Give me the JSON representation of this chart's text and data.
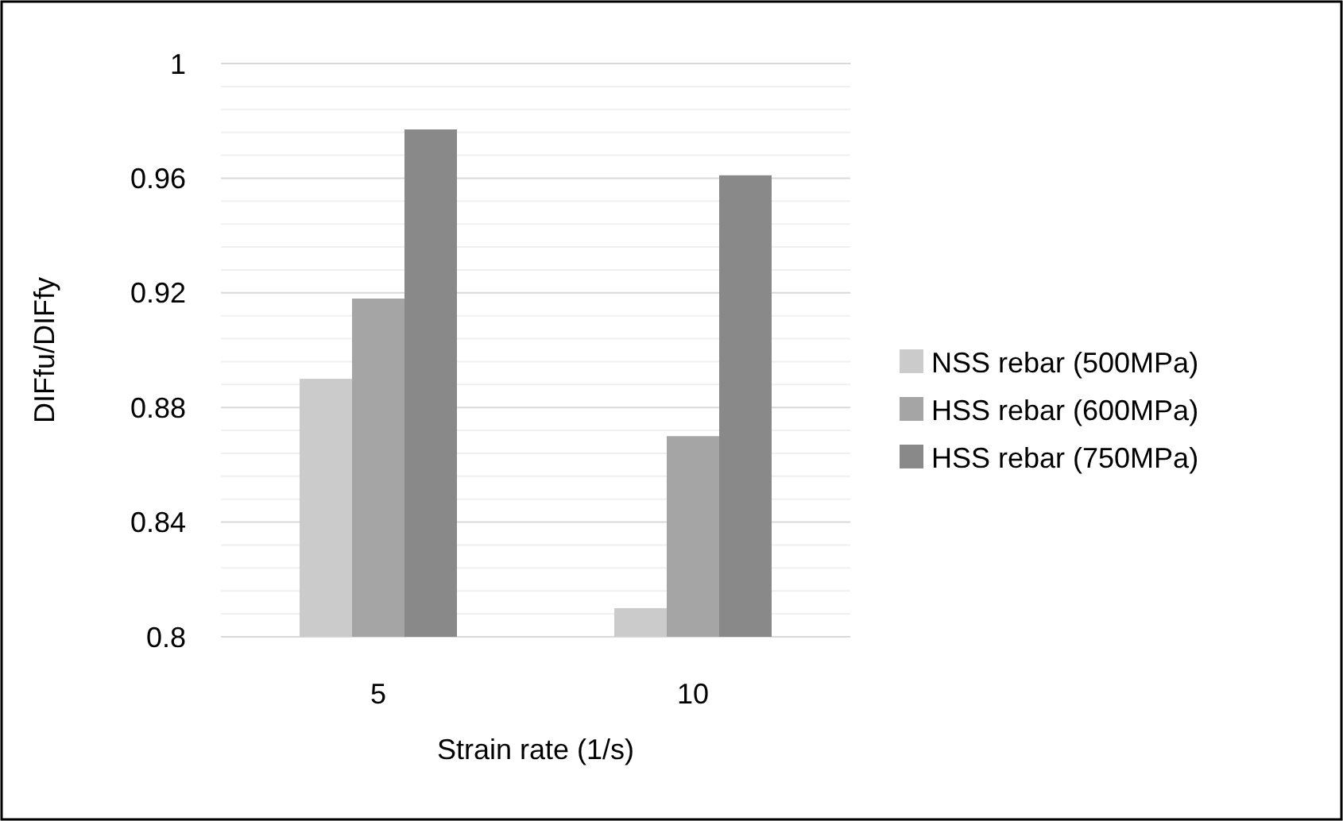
{
  "chart_data": {
    "type": "bar",
    "xlabel": "Strain rate (1/s)",
    "ylabel": "DIFfu/DIFfy",
    "categories": [
      "5",
      "10"
    ],
    "series": [
      {
        "name": "NSS rebar (500MPa)",
        "color": "#cbcbcb",
        "values": [
          0.89,
          0.81
        ]
      },
      {
        "name": "HSS rebar (600MPa)",
        "color": "#a5a5a5",
        "values": [
          0.918,
          0.87
        ]
      },
      {
        "name": "HSS rebar (750MPa)",
        "color": "#898989",
        "values": [
          0.977,
          0.961
        ]
      }
    ],
    "ylim": [
      0.8,
      1
    ],
    "yticks": [
      0.8,
      {
        "value": 0.808,
        "label": null
      },
      {
        "value": 0.816,
        "label": null
      },
      {
        "value": 0.824,
        "label": null
      },
      {
        "value": 0.832,
        "label": null
      },
      0.84,
      {
        "value": 0.848,
        "label": null
      },
      {
        "value": 0.856,
        "label": null
      },
      {
        "value": 0.864,
        "label": null
      },
      {
        "value": 0.872,
        "label": null
      },
      0.88,
      {
        "value": 0.888,
        "label": null
      },
      {
        "value": 0.896,
        "label": null
      },
      {
        "value": 0.904,
        "label": null
      },
      {
        "value": 0.912,
        "label": null
      },
      0.92,
      {
        "value": 0.928,
        "label": null
      },
      {
        "value": 0.936,
        "label": null
      },
      {
        "value": 0.944,
        "label": null
      },
      {
        "value": 0.952,
        "label": null
      },
      0.96,
      {
        "value": 0.968,
        "label": null
      },
      {
        "value": 0.976,
        "label": null
      },
      {
        "value": 0.984,
        "label": null
      },
      {
        "value": 0.992,
        "label": null
      },
      1
    ],
    "grid": true,
    "legend": "right"
  }
}
